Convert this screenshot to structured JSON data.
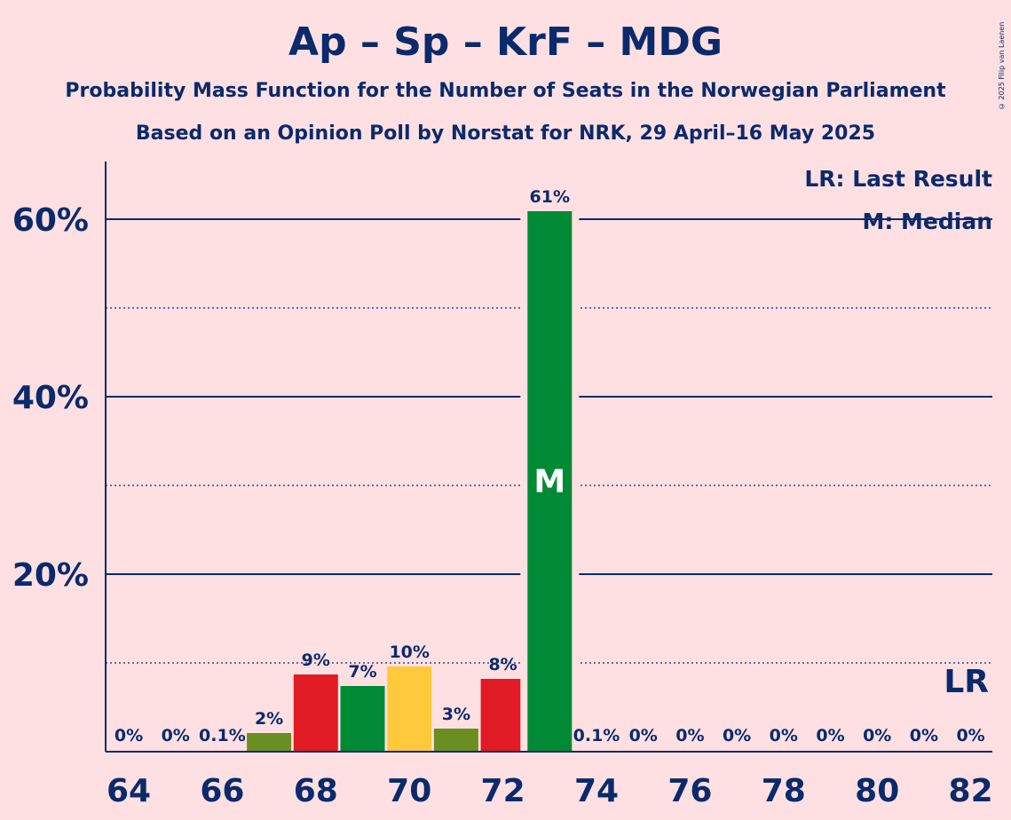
{
  "title": "Ap – Sp – KrF – MDG",
  "subtitle1": "Probability Mass Function for the Number of Seats in the Norwegian Parliament",
  "subtitle2": "Based on an Opinion Poll by Norstat for NRK, 29 April–16 May 2025",
  "copyright": "© 2025 Filip van Laenen",
  "legend": {
    "lr": "LR: Last Result",
    "m": "M: Median"
  },
  "colors": {
    "background": "#ffe0e2",
    "text": "#0a2a6b",
    "green": "#008a36",
    "red": "#e01b24",
    "yellow": "#ffc93c",
    "olive": "#6b8e23"
  },
  "chart_data": {
    "type": "bar",
    "x": [
      64,
      65,
      66,
      67,
      68,
      69,
      70,
      71,
      72,
      73,
      74,
      75,
      76,
      77,
      78,
      79,
      80,
      81,
      82
    ],
    "values": [
      0,
      0,
      0.1,
      2.1,
      8.7,
      7.4,
      9.6,
      2.6,
      8.2,
      60.9,
      0.1,
      0,
      0,
      0,
      0,
      0,
      0,
      0,
      0
    ],
    "labels": [
      "0%",
      "0%",
      "0.1%",
      "2%",
      "9%",
      "7%",
      "10%",
      "3%",
      "8%",
      "61%",
      "0.1%",
      "0%",
      "0%",
      "0%",
      "0%",
      "0%",
      "0%",
      "0%",
      "0%"
    ],
    "bar_colors": [
      "olive",
      "olive",
      "olive",
      "olive",
      "red",
      "green",
      "yellow",
      "olive",
      "red",
      "green",
      "olive",
      "olive",
      "olive",
      "olive",
      "olive",
      "olive",
      "olive",
      "olive",
      "olive"
    ],
    "xticks": [
      "64",
      "66",
      "68",
      "70",
      "72",
      "74",
      "76",
      "78",
      "80",
      "82"
    ],
    "yticks": [
      "20%",
      "40%",
      "60%"
    ],
    "ylim": [
      0,
      66
    ],
    "median": 73,
    "median_label": "M",
    "last_result": 82,
    "last_result_label": "LR"
  }
}
